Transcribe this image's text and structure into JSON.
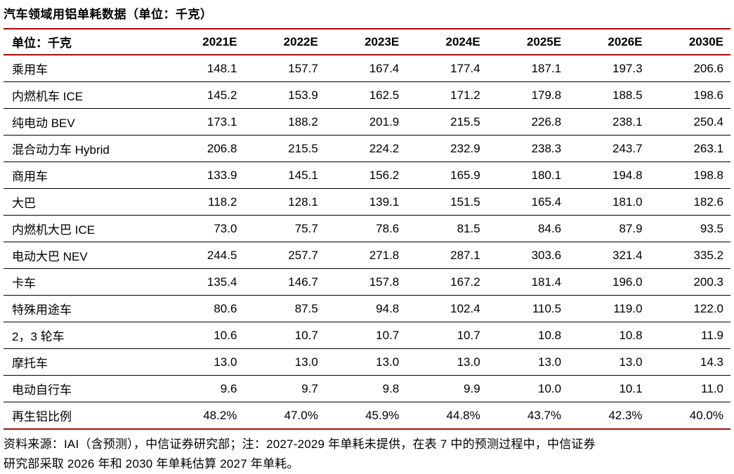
{
  "title": "汽车领域用铝单耗数据（单位：千克）",
  "colors": {
    "accent_red": "#a80808",
    "row_line": "#000000",
    "text": "#000000",
    "background": "#ffffff"
  },
  "table": {
    "columns": [
      "单位：千克",
      "2021E",
      "2022E",
      "2023E",
      "2024E",
      "2025E",
      "2026E",
      "2030E"
    ],
    "rows": [
      {
        "label": "乘用车",
        "values": [
          "148.1",
          "157.7",
          "167.4",
          "177.4",
          "187.1",
          "197.3",
          "206.6"
        ]
      },
      {
        "label": "内燃机车 ICE",
        "values": [
          "145.2",
          "153.9",
          "162.5",
          "171.2",
          "179.8",
          "188.5",
          "198.6"
        ]
      },
      {
        "label": "纯电动 BEV",
        "values": [
          "173.1",
          "188.2",
          "201.9",
          "215.5",
          "226.8",
          "238.1",
          "250.4"
        ]
      },
      {
        "label": "混合动力车 Hybrid",
        "values": [
          "206.8",
          "215.5",
          "224.2",
          "232.9",
          "238.3",
          "243.7",
          "263.1"
        ]
      },
      {
        "label": "商用车",
        "values": [
          "133.9",
          "145.1",
          "156.2",
          "165.9",
          "180.1",
          "194.8",
          "198.8"
        ]
      },
      {
        "label": "大巴",
        "values": [
          "118.2",
          "128.1",
          "139.1",
          "151.5",
          "165.4",
          "181.0",
          "182.6"
        ]
      },
      {
        "label": "内燃机大巴 ICE",
        "values": [
          "73.0",
          "75.7",
          "78.6",
          "81.5",
          "84.6",
          "87.9",
          "93.5"
        ]
      },
      {
        "label": "电动大巴 NEV",
        "values": [
          "244.5",
          "257.7",
          "271.8",
          "287.1",
          "303.6",
          "321.4",
          "335.2"
        ]
      },
      {
        "label": "卡车",
        "values": [
          "135.4",
          "146.7",
          "157.8",
          "167.2",
          "181.4",
          "196.0",
          "200.3"
        ]
      },
      {
        "label": "特殊用途车",
        "values": [
          "80.6",
          "87.5",
          "94.8",
          "102.4",
          "110.5",
          "119.0",
          "122.0"
        ]
      },
      {
        "label": "2，3 轮车",
        "values": [
          "10.6",
          "10.7",
          "10.7",
          "10.7",
          "10.8",
          "10.8",
          "11.9"
        ]
      },
      {
        "label": "摩托车",
        "values": [
          "13.0",
          "13.0",
          "13.0",
          "13.0",
          "13.0",
          "13.0",
          "14.3"
        ]
      },
      {
        "label": "电动自行车",
        "values": [
          "9.6",
          "9.7",
          "9.8",
          "9.9",
          "10.0",
          "10.1",
          "11.0"
        ]
      },
      {
        "label": "再生铝比例",
        "values": [
          "48.2%",
          "47.0%",
          "45.9%",
          "44.8%",
          "43.7%",
          "42.3%",
          "40.0%"
        ]
      }
    ]
  },
  "footnote": {
    "lines": [
      "资料来源：IAI（含预测），中信证券研究部；注：2027-2029 年单耗未提供，在表 7 中的预测过程中，中信证券",
      "研究部采取 2026 年和 2030 年单耗估算 2027 年单耗。"
    ]
  }
}
